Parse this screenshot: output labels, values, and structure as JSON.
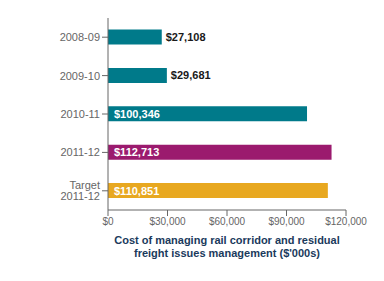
{
  "chart_data": {
    "type": "bar",
    "orientation": "horizontal",
    "categories": [
      "2008-09",
      "2009-10",
      "2010-11",
      "2011-12",
      "Target 2011-12"
    ],
    "values": [
      27108,
      29681,
      100346,
      112713,
      110851
    ],
    "value_labels": [
      "$27,108",
      "$29,681",
      "$100,346",
      "$112,713",
      "$110,851"
    ],
    "colors": [
      "#007a8a",
      "#007a8a",
      "#007a8a",
      "#9b1a6e",
      "#e8a820"
    ],
    "data_labels": true,
    "xlabel": "Cost of managing rail corridor and residual\nfreight issues management ($'000s)",
    "xlim": [
      0,
      120000
    ],
    "xticks": [
      {
        "value": 0,
        "label": "$0"
      },
      {
        "value": 30000,
        "label": "$30,000"
      },
      {
        "value": 60000,
        "label": "$60,000"
      },
      {
        "value": 90000,
        "label": "$90,000"
      },
      {
        "value": 120000,
        "label": "$120,000"
      }
    ],
    "grid": false
  }
}
